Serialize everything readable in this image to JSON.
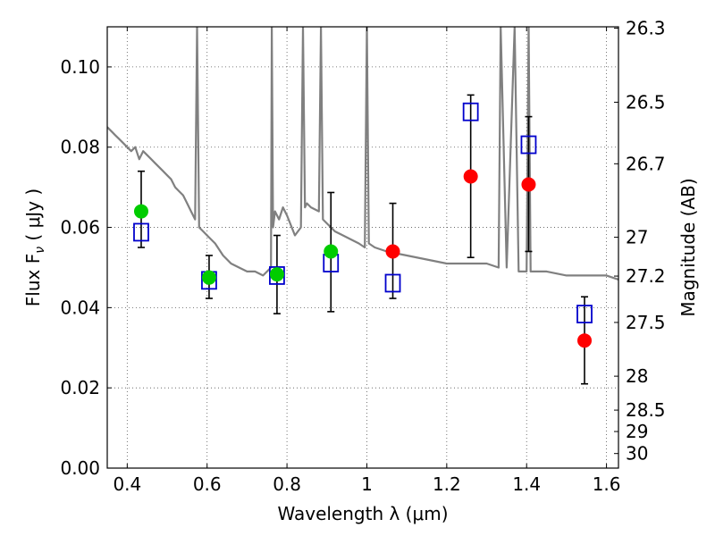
{
  "chart_data": {
    "type": "scatter",
    "xlabel": "Wavelength  λ (μm)",
    "ylabel": "Flux  F",
    "ylabel_sub": "ν",
    "ylabel_unit": "  ( μJy )",
    "ylabel_right": "Magnitude (AB)",
    "xlim": [
      0.35,
      1.63
    ],
    "ylim": [
      0.0,
      0.11
    ],
    "grid": true,
    "x_ticks": [
      0.4,
      0.6,
      0.8,
      1.0,
      1.2,
      1.4,
      1.6
    ],
    "x_tick_labels": [
      "0.4",
      "0.6",
      "0.8",
      "1",
      "1.2",
      "1.4",
      "1.6"
    ],
    "y_ticks": [
      0.0,
      0.02,
      0.04,
      0.06,
      0.08,
      0.1
    ],
    "y_tick_labels": [
      "0.00",
      "0.02",
      "0.04",
      "0.06",
      "0.08",
      "0.10"
    ],
    "right_ticks": [
      {
        "mag": 26.3,
        "label": "26.3"
      },
      {
        "mag": 26.5,
        "label": "26.5"
      },
      {
        "mag": 26.7,
        "label": "26.7"
      },
      {
        "mag": 27.0,
        "label": "27"
      },
      {
        "mag": 27.2,
        "label": "27.2"
      },
      {
        "mag": 27.5,
        "label": "27.5"
      },
      {
        "mag": 28.0,
        "label": "28"
      },
      {
        "mag": 28.5,
        "label": "28.5"
      },
      {
        "mag": 29.0,
        "label": "29"
      },
      {
        "mag": 30.0,
        "label": "30"
      }
    ],
    "series": [
      {
        "type": "line",
        "color": "#808080",
        "x": [
          0.35,
          0.36,
          0.37,
          0.38,
          0.39,
          0.4,
          0.41,
          0.42,
          0.43,
          0.44,
          0.45,
          0.46,
          0.47,
          0.48,
          0.49,
          0.5,
          0.51,
          0.52,
          0.53,
          0.54,
          0.55,
          0.56,
          0.57,
          0.575,
          0.58,
          0.59,
          0.6,
          0.62,
          0.64,
          0.66,
          0.68,
          0.7,
          0.72,
          0.74,
          0.75,
          0.76,
          0.762,
          0.765,
          0.77,
          0.78,
          0.79,
          0.8,
          0.82,
          0.835,
          0.84,
          0.845,
          0.85,
          0.86,
          0.88,
          0.885,
          0.89,
          0.9,
          0.92,
          0.94,
          0.96,
          0.98,
          0.995,
          1.0,
          1.005,
          1.02,
          1.05,
          1.1,
          1.15,
          1.2,
          1.25,
          1.3,
          1.33,
          1.335,
          1.35,
          1.37,
          1.38,
          1.4,
          1.405,
          1.41,
          1.45,
          1.5,
          1.55,
          1.6,
          1.63
        ],
        "y": [
          0.085,
          0.084,
          0.083,
          0.082,
          0.081,
          0.08,
          0.079,
          0.08,
          0.077,
          0.079,
          0.078,
          0.077,
          0.076,
          0.075,
          0.074,
          0.073,
          0.072,
          0.07,
          0.069,
          0.068,
          0.066,
          0.064,
          0.062,
          0.11,
          0.06,
          0.059,
          0.058,
          0.056,
          0.053,
          0.051,
          0.05,
          0.049,
          0.049,
          0.048,
          0.049,
          0.05,
          0.11,
          0.06,
          0.064,
          0.062,
          0.065,
          0.063,
          0.058,
          0.06,
          0.11,
          0.065,
          0.066,
          0.065,
          0.064,
          0.11,
          0.062,
          0.061,
          0.059,
          0.058,
          0.057,
          0.056,
          0.055,
          0.11,
          0.056,
          0.055,
          0.054,
          0.053,
          0.052,
          0.051,
          0.051,
          0.051,
          0.05,
          0.11,
          0.05,
          0.11,
          0.049,
          0.049,
          0.11,
          0.049,
          0.049,
          0.048,
          0.048,
          0.048,
          0.047
        ]
      }
    ],
    "model_points": {
      "color": "#0000cc",
      "x": [
        0.435,
        0.605,
        0.775,
        0.91,
        1.065,
        1.26,
        1.405,
        1.545
      ],
      "y": [
        0.0588,
        0.0468,
        0.048,
        0.0511,
        0.0461,
        0.0888,
        0.0806,
        0.0384
      ]
    },
    "observed_points": {
      "green": {
        "color": "#00cc00",
        "x": [
          0.435,
          0.605,
          0.775,
          0.91
        ],
        "y": [
          0.064,
          0.0475,
          0.0483,
          0.054
        ]
      },
      "red": {
        "color": "#ff0000",
        "x": [
          1.065,
          1.26,
          1.405,
          1.545
        ],
        "y": [
          0.054,
          0.0727,
          0.0707,
          0.0318
        ]
      }
    },
    "error_bars": {
      "color": "#000000",
      "x": [
        0.435,
        0.605,
        0.775,
        0.91,
        1.065,
        1.26,
        1.405,
        1.545
      ],
      "y_low": [
        0.055,
        0.0423,
        0.0385,
        0.039,
        0.0423,
        0.0525,
        0.054,
        0.021
      ],
      "y_high": [
        0.074,
        0.053,
        0.058,
        0.0687,
        0.066,
        0.093,
        0.0876,
        0.0427
      ]
    }
  }
}
